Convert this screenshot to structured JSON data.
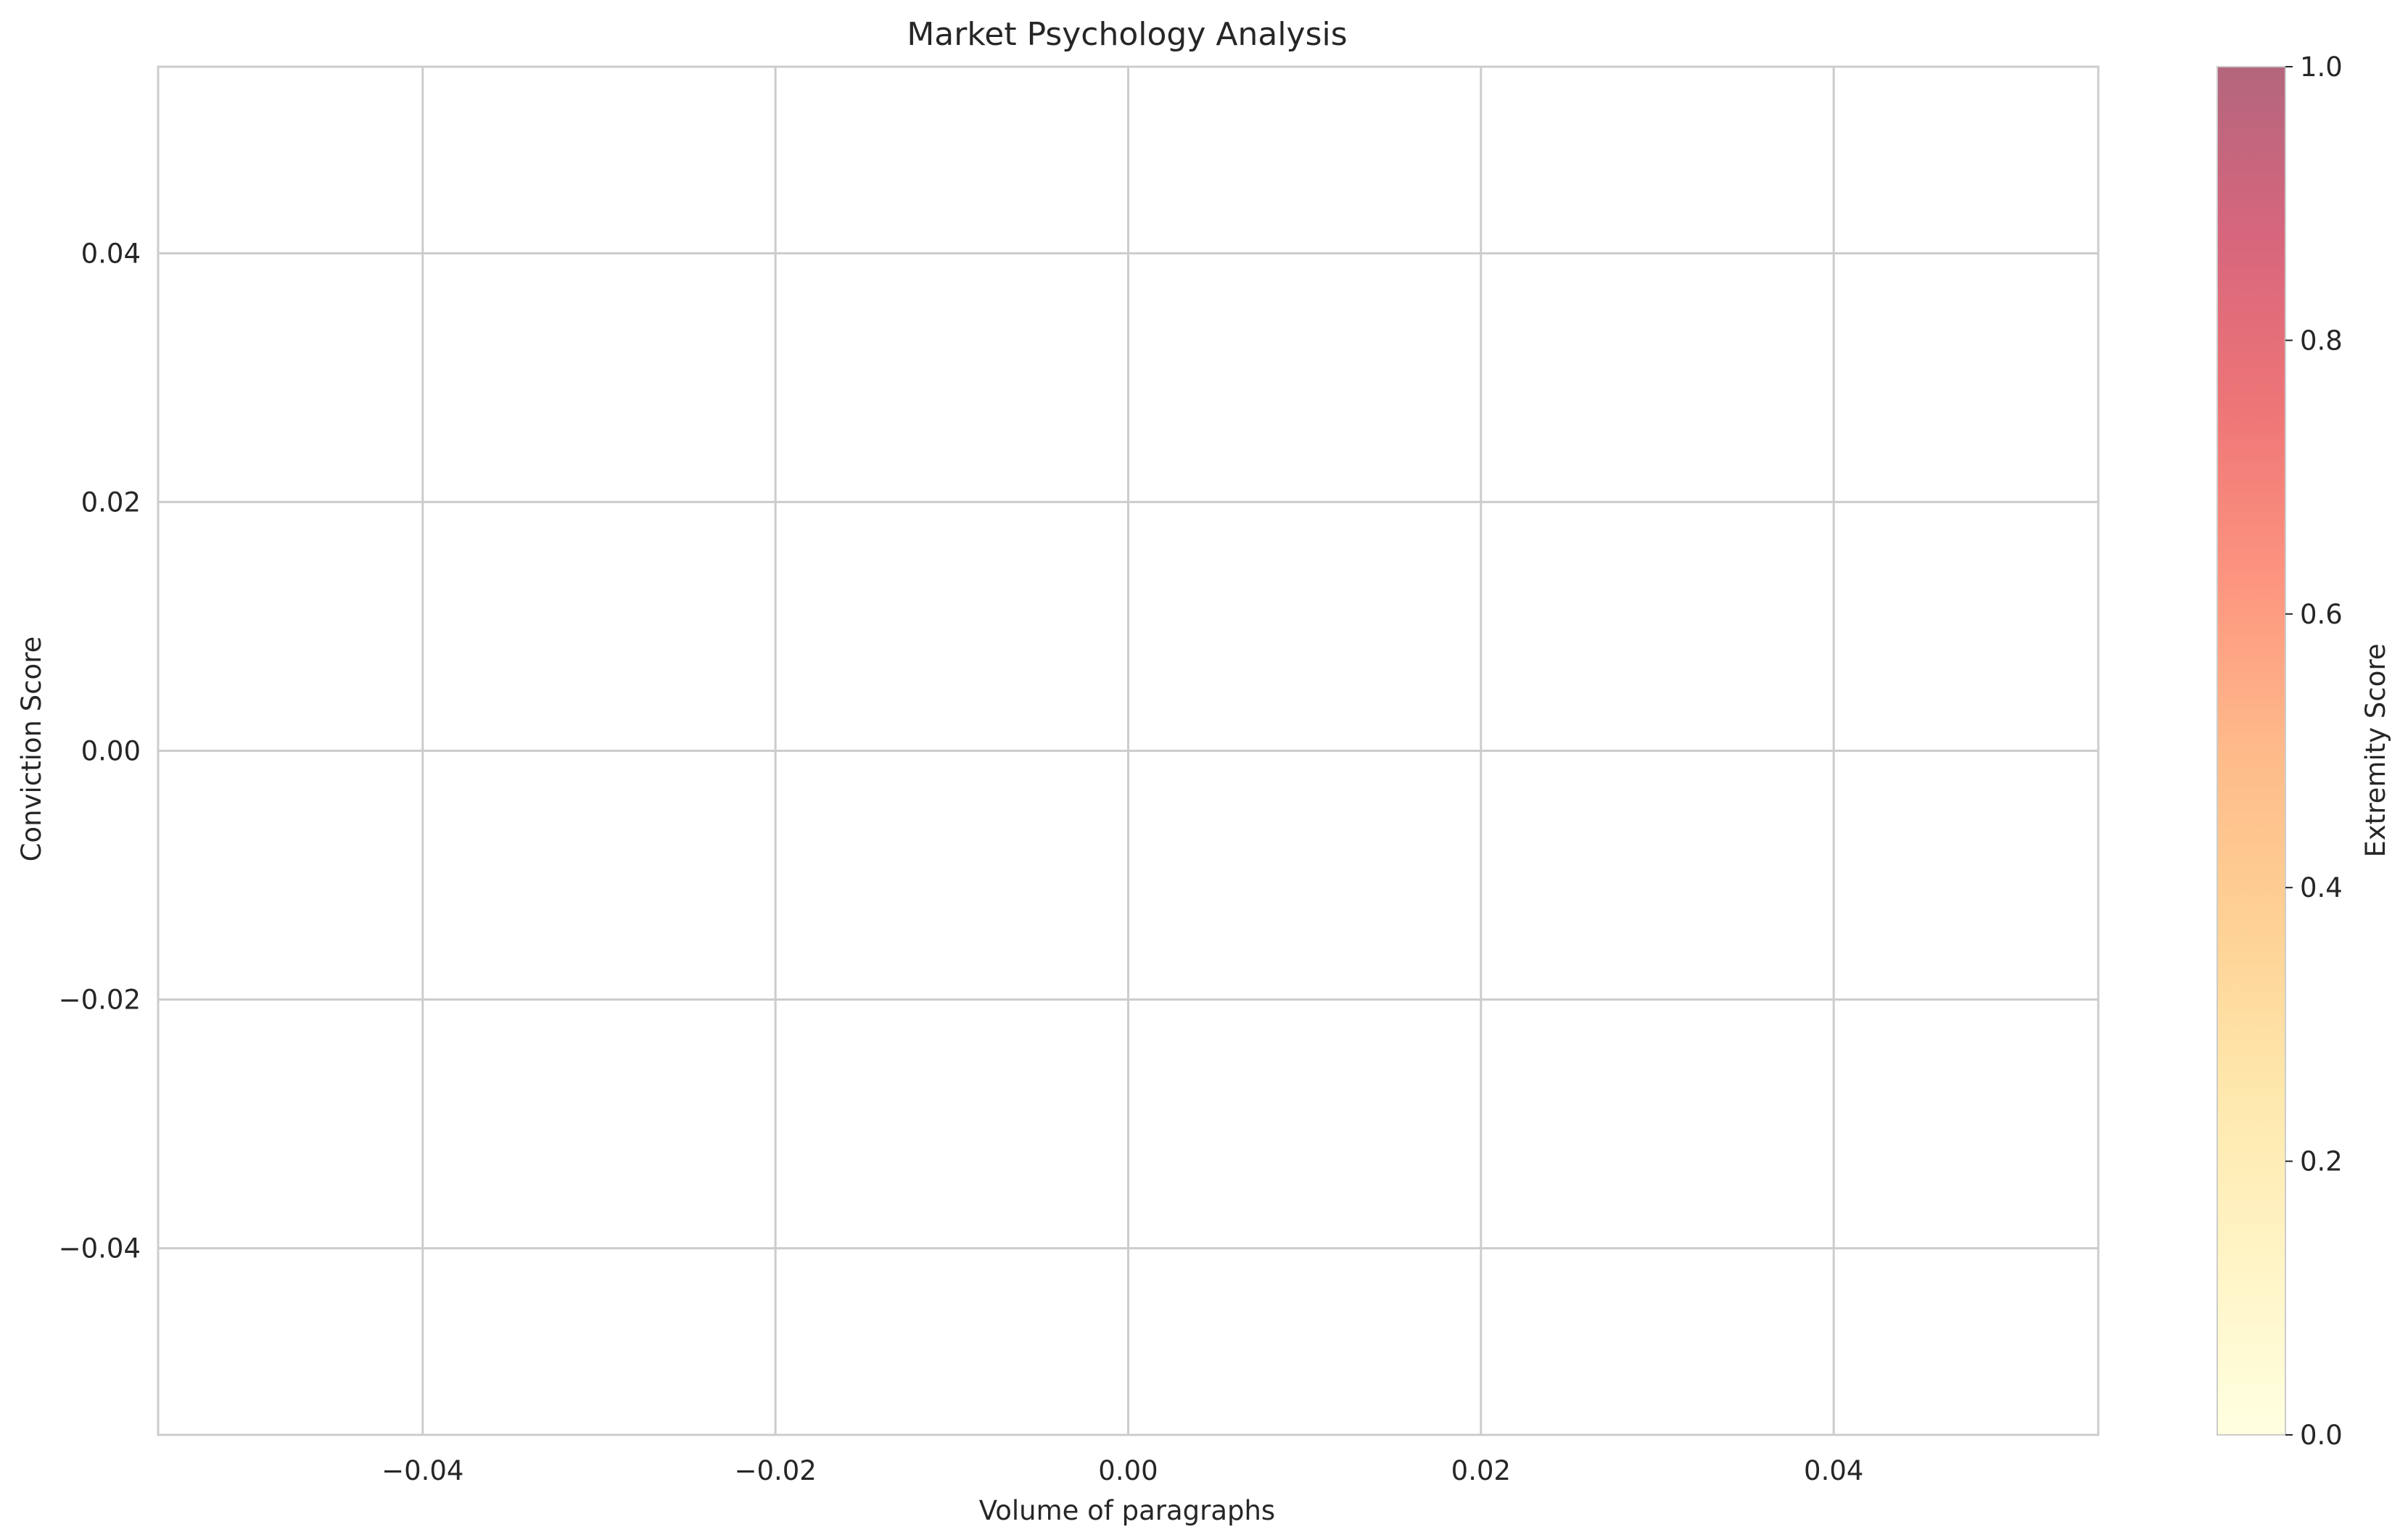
{
  "chart_data": {
    "type": "scatter",
    "title": "Market Psychology Analysis",
    "xlabel": "Volume of paragraphs",
    "ylabel": "Conviction Score",
    "xlim": [
      -0.055,
      0.055
    ],
    "ylim": [
      -0.055,
      0.055
    ],
    "xticks": [
      {
        "value": -0.04,
        "label": "−0.04"
      },
      {
        "value": -0.02,
        "label": "−0.02"
      },
      {
        "value": 0.0,
        "label": "0.00"
      },
      {
        "value": 0.02,
        "label": "0.02"
      },
      {
        "value": 0.04,
        "label": "0.04"
      }
    ],
    "yticks": [
      {
        "value": 0.04,
        "label": "0.04"
      },
      {
        "value": 0.02,
        "label": "0.02"
      },
      {
        "value": 0.0,
        "label": "0.00"
      },
      {
        "value": -0.02,
        "label": "−0.02"
      },
      {
        "value": -0.04,
        "label": "−0.04"
      }
    ],
    "points": [],
    "grid": true,
    "colorbar": {
      "label": "Extremity Score",
      "range": [
        0,
        1
      ],
      "colormap": "YlOrRd",
      "alpha": 0.6,
      "ticks": [
        {
          "value": 0.0,
          "label": "0.0"
        },
        {
          "value": 0.2,
          "label": "0.2"
        },
        {
          "value": 0.4,
          "label": "0.4"
        },
        {
          "value": 0.6,
          "label": "0.6"
        },
        {
          "value": 0.8,
          "label": "0.8"
        },
        {
          "value": 1.0,
          "label": "1.0"
        }
      ],
      "colors": [
        "#ffffcc",
        "#ffeda0",
        "#fed976",
        "#feb24c",
        "#fd8d3c",
        "#fc4e2a",
        "#e31a1c",
        "#bd0026",
        "#800026"
      ]
    },
    "colors": {
      "grid": "#cccccc",
      "spine": "#cccccc",
      "text": "#262626",
      "background": "#ffffff"
    }
  }
}
